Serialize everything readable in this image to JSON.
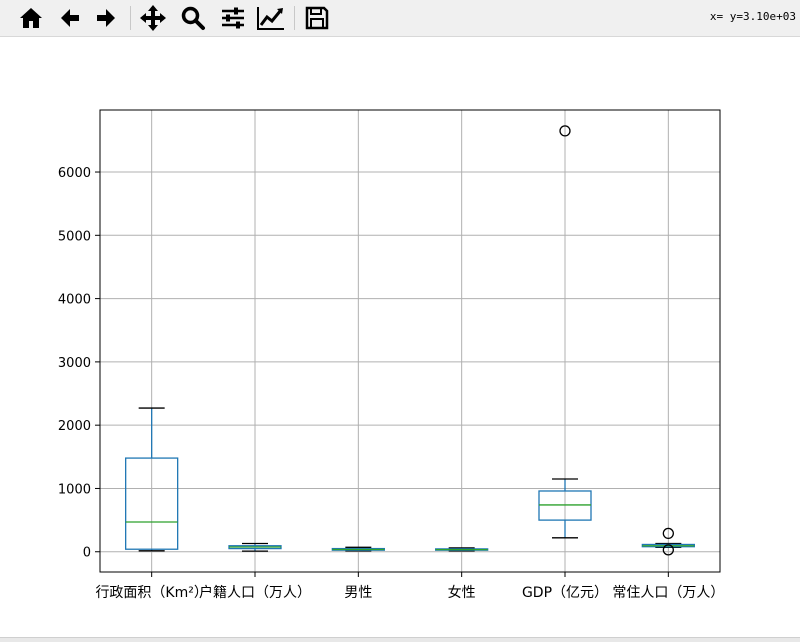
{
  "toolbar": {
    "buttons": [
      {
        "name": "home-button",
        "icon": "home-icon"
      },
      {
        "name": "back-button",
        "icon": "arrow-left-icon"
      },
      {
        "name": "forward-button",
        "icon": "arrow-right-icon"
      },
      {
        "name": "pan-button",
        "icon": "move-icon"
      },
      {
        "name": "zoom-button",
        "icon": "magnifier-icon"
      },
      {
        "name": "subplots-button",
        "icon": "sliders-icon"
      },
      {
        "name": "edit-axis-button",
        "icon": "line-chart-icon"
      },
      {
        "name": "save-button",
        "icon": "floppy-disk-icon"
      }
    ],
    "coords": "x= y=3.10e+03"
  },
  "chart_data": {
    "type": "box",
    "title": "",
    "xlabel": "",
    "ylabel": "",
    "ylim": [
      -320,
      6980
    ],
    "yticks": [
      0,
      1000,
      2000,
      3000,
      4000,
      5000,
      6000
    ],
    "grid": true,
    "categories": [
      "行政面积（Km²）",
      "户籍人口（万人）",
      "男性",
      "女性",
      "GDP（亿元）",
      "常住人口（万人）"
    ],
    "boxes": [
      {
        "whisker_low": 15,
        "q1": 40,
        "median": 470,
        "q3": 1480,
        "whisker_high": 2270,
        "outliers": []
      },
      {
        "whisker_low": 10,
        "q1": 50,
        "median": 75,
        "q3": 95,
        "whisker_high": 130,
        "outliers": []
      },
      {
        "whisker_low": 15,
        "q1": 25,
        "median": 35,
        "q3": 50,
        "whisker_high": 70,
        "outliers": []
      },
      {
        "whisker_low": 15,
        "q1": 25,
        "median": 33,
        "q3": 45,
        "whisker_high": 60,
        "outliers": []
      },
      {
        "whisker_low": 220,
        "q1": 500,
        "median": 740,
        "q3": 960,
        "whisker_high": 1150,
        "outliers": [
          6650
        ]
      },
      {
        "whisker_low": 70,
        "q1": 80,
        "median": 95,
        "q3": 115,
        "whisker_high": 130,
        "outliers": [
          30,
          290
        ]
      }
    ],
    "colors": {
      "box": "#1f77b4",
      "median": "#2ca02c",
      "grid": "#b0b0b0",
      "whisker_cap": "#000000"
    }
  }
}
